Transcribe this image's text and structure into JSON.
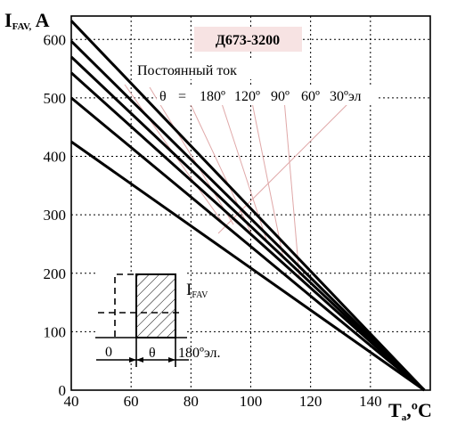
{
  "chart_data": {
    "type": "line",
    "title": "",
    "model_label": "Д673-3200",
    "xlabel": "",
    "ylabel": "",
    "y_unit": {
      "main": "I",
      "sub": "FAV,",
      "tail": " A"
    },
    "x_unit": {
      "main": "T",
      "sub": "a",
      "tail": ",ºC"
    },
    "xlim": [
      40,
      160
    ],
    "ylim": [
      0,
      640
    ],
    "x_ticks": [
      40,
      60,
      80,
      100,
      120,
      140
    ],
    "y_ticks": [
      0,
      100,
      200,
      300,
      400,
      500,
      600
    ],
    "grid": true,
    "legend": {
      "heading": "Постоянный ток",
      "theta": "θ",
      "equals": "=",
      "entries": [
        "180º",
        "120º",
        "90º",
        "60º",
        "30ºэл"
      ]
    },
    "series": [
      {
        "x": [
          40,
          158
        ],
        "y": [
          632,
          0
        ]
      },
      {
        "x": [
          40,
          158
        ],
        "y": [
          597,
          0
        ]
      },
      {
        "x": [
          40,
          158
        ],
        "y": [
          570,
          0
        ]
      },
      {
        "x": [
          40,
          158
        ],
        "y": [
          543,
          0
        ]
      },
      {
        "x": [
          40,
          158
        ],
        "y": [
          500,
          0
        ]
      },
      {
        "x": [
          40,
          158
        ],
        "y": [
          425,
          0
        ]
      }
    ],
    "inset": {
      "zero_label": "0",
      "theta_label": "θ",
      "period_label": "180ºэл.",
      "current_label": {
        "main": "I",
        "sub": "FAV"
      }
    }
  }
}
